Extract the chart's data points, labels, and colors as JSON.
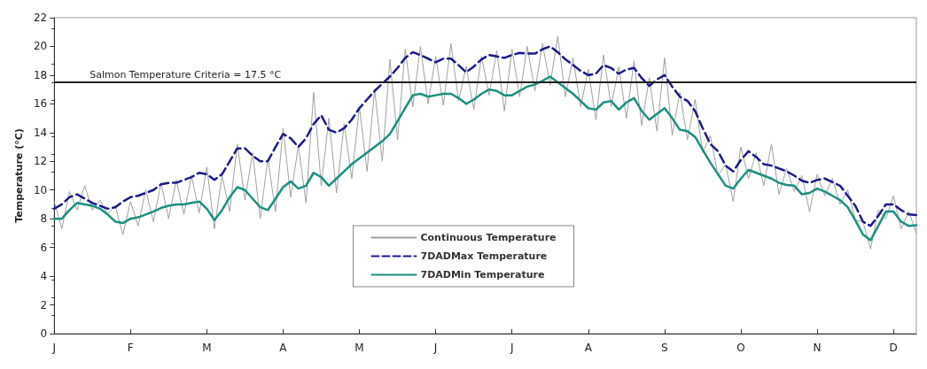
{
  "chart_data": {
    "type": "line",
    "ylabel": "Temperature (°C)",
    "categories": [
      "J",
      null,
      null,
      null,
      null,
      null,
      null,
      null,
      null,
      null,
      "F",
      null,
      null,
      null,
      null,
      null,
      null,
      null,
      null,
      null,
      "M",
      null,
      null,
      null,
      null,
      null,
      null,
      null,
      null,
      null,
      "A",
      null,
      null,
      null,
      null,
      null,
      null,
      null,
      null,
      null,
      "M",
      null,
      null,
      null,
      null,
      null,
      null,
      null,
      null,
      null,
      "J",
      null,
      null,
      null,
      null,
      null,
      null,
      null,
      null,
      null,
      "J",
      null,
      null,
      null,
      null,
      null,
      null,
      null,
      null,
      null,
      "A",
      null,
      null,
      null,
      null,
      null,
      null,
      null,
      null,
      null,
      "S",
      null,
      null,
      null,
      null,
      null,
      null,
      null,
      null,
      null,
      "O",
      null,
      null,
      null,
      null,
      null,
      null,
      null,
      null,
      null,
      "N",
      null,
      null,
      null,
      null,
      null,
      null,
      null,
      null,
      null,
      "D",
      null,
      null,
      null
    ],
    "ylim": [
      0,
      22
    ],
    "yticks": [
      0,
      2,
      4,
      6,
      8,
      10,
      12,
      14,
      16,
      18,
      20,
      22
    ],
    "grid": false,
    "legend": "bottom",
    "marker": "none",
    "ref_lines": [
      {
        "axis": "y",
        "value": 17.5,
        "label": "Salmon Temperature Criteria = 17.5 °C",
        "color": "#222222"
      }
    ],
    "series": [
      {
        "name": "Continuous Temperature",
        "color": "#a0a0a0",
        "line_style": "solid",
        "values": [
          9.2,
          7.3,
          9.9,
          8.6,
          10.3,
          8.6,
          9.3,
          8.3,
          8.9,
          6.9,
          9.2,
          7.5,
          10.0,
          7.8,
          10.5,
          8.0,
          10.7,
          8.3,
          11.0,
          8.4,
          11.6,
          7.3,
          11.0,
          8.5,
          13.2,
          9.3,
          12.6,
          8.0,
          12.2,
          8.5,
          14.3,
          9.5,
          13.1,
          9.1,
          16.8,
          10.3,
          15.0,
          9.8,
          14.6,
          10.8,
          15.8,
          11.3,
          17.0,
          12.0,
          19.1,
          13.5,
          19.8,
          15.8,
          20.0,
          16.0,
          19.3,
          15.9,
          20.2,
          16.2,
          18.6,
          15.6,
          19.3,
          16.6,
          19.7,
          15.5,
          19.8,
          16.5,
          20.0,
          16.9,
          20.2,
          17.3,
          20.7,
          16.5,
          19.2,
          15.8,
          18.4,
          14.9,
          19.4,
          15.8,
          18.6,
          15.0,
          19.0,
          14.5,
          17.8,
          14.1,
          19.2,
          13.8,
          16.8,
          13.5,
          16.3,
          12.6,
          13.8,
          11.0,
          11.8,
          9.2,
          13.0,
          10.8,
          12.6,
          10.3,
          13.2,
          9.7,
          11.5,
          9.9,
          11.0,
          8.5,
          11.1,
          9.6,
          10.8,
          9.0,
          10.0,
          7.9,
          7.8,
          5.9,
          8.6,
          8.0,
          9.6,
          7.3,
          8.5,
          7.0
        ]
      },
      {
        "name": "7DADMax Temperature",
        "color": "#1a1a8c",
        "line_style": "dashed",
        "values": [
          8.7,
          9.0,
          9.5,
          9.7,
          9.4,
          9.1,
          8.9,
          8.7,
          8.8,
          9.2,
          9.5,
          9.6,
          9.8,
          10.0,
          10.4,
          10.5,
          10.5,
          10.7,
          10.9,
          11.2,
          11.1,
          10.7,
          11.1,
          12.0,
          12.9,
          12.9,
          12.4,
          12.0,
          12.0,
          13.0,
          13.9,
          13.6,
          13.0,
          13.6,
          14.6,
          15.2,
          14.2,
          14.0,
          14.3,
          14.9,
          15.7,
          16.3,
          16.9,
          17.4,
          17.9,
          18.5,
          19.2,
          19.6,
          19.4,
          19.15,
          18.9,
          19.15,
          19.15,
          18.7,
          18.2,
          18.6,
          19.1,
          19.4,
          19.3,
          19.2,
          19.4,
          19.55,
          19.5,
          19.5,
          19.8,
          20.0,
          19.6,
          19.1,
          18.7,
          18.3,
          18.0,
          18.1,
          18.7,
          18.5,
          18.1,
          18.4,
          18.5,
          17.8,
          17.25,
          17.7,
          18.0,
          17.2,
          16.5,
          16.2,
          15.5,
          14.3,
          13.2,
          12.7,
          11.7,
          11.3,
          12.1,
          12.7,
          12.3,
          11.8,
          11.7,
          11.5,
          11.3,
          11.0,
          10.65,
          10.5,
          10.7,
          10.8,
          10.55,
          10.3,
          9.6,
          8.9,
          7.8,
          7.5,
          8.2,
          9.0,
          9.0,
          8.6,
          8.3,
          8.25
        ]
      },
      {
        "name": "7DADMin Temperature",
        "color": "#1a9080",
        "line_style": "solid",
        "values": [
          8.0,
          8.0,
          8.6,
          9.1,
          9.0,
          8.9,
          8.7,
          8.3,
          7.8,
          7.7,
          8.0,
          8.1,
          8.3,
          8.5,
          8.75,
          8.9,
          9.0,
          9.0,
          9.1,
          9.2,
          8.7,
          7.9,
          8.6,
          9.5,
          10.2,
          10.0,
          9.4,
          8.8,
          8.6,
          9.4,
          10.2,
          10.6,
          10.1,
          10.3,
          11.2,
          10.9,
          10.3,
          10.8,
          11.3,
          11.8,
          12.2,
          12.6,
          13.0,
          13.4,
          13.9,
          14.8,
          15.7,
          16.6,
          16.7,
          16.5,
          16.6,
          16.7,
          16.7,
          16.4,
          16.0,
          16.3,
          16.7,
          17.0,
          16.9,
          16.6,
          16.6,
          16.9,
          17.2,
          17.35,
          17.6,
          17.9,
          17.5,
          17.1,
          16.7,
          16.2,
          15.7,
          15.6,
          16.1,
          16.2,
          15.6,
          16.1,
          16.4,
          15.5,
          14.9,
          15.3,
          15.7,
          15.0,
          14.2,
          14.1,
          13.7,
          12.8,
          11.9,
          11.1,
          10.3,
          10.1,
          10.8,
          11.4,
          11.2,
          11.0,
          10.8,
          10.5,
          10.35,
          10.3,
          9.7,
          9.8,
          10.1,
          9.9,
          9.6,
          9.3,
          8.8,
          7.9,
          6.9,
          6.5,
          7.5,
          8.5,
          8.5,
          7.8,
          7.5,
          7.55
        ]
      }
    ]
  }
}
